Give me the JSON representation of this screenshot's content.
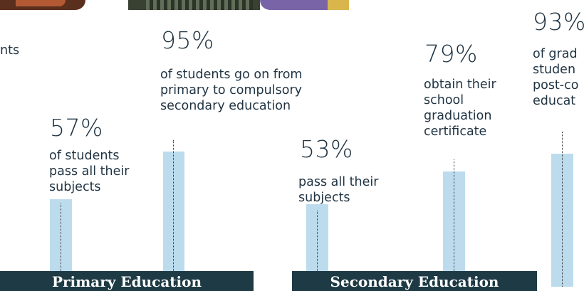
{
  "cutoff": {
    "partial_label": "nts"
  },
  "chart_data": {
    "type": "bar",
    "ylabel": "",
    "ylim": [
      0,
      100
    ],
    "groups": [
      {
        "label": "Primary Education",
        "bars": [
          {
            "value": 57,
            "percent_label": "57%",
            "description": [
              "of students",
              "pass all their",
              "subjects"
            ]
          },
          {
            "value": 95,
            "percent_label": "95%",
            "description": [
              "of students go on from",
              "primary to compulsory",
              "secondary education"
            ]
          }
        ]
      },
      {
        "label": "Secondary Education",
        "bars": [
          {
            "value": 53,
            "percent_label": "53%",
            "description": [
              "pass all their",
              "subjects"
            ]
          },
          {
            "value": 79,
            "percent_label": "79%",
            "description": [
              "obtain their",
              "school",
              "graduation",
              "certificate"
            ]
          }
        ]
      },
      {
        "label": "",
        "bars": [
          {
            "value": 93,
            "percent_label": "93%",
            "description": [
              "of grad",
              "studen",
              "post-co",
              "educat"
            ]
          }
        ]
      }
    ],
    "colors": {
      "bar": "#bcdcee",
      "band": "#1e3a44",
      "text": "#1f3342"
    }
  }
}
